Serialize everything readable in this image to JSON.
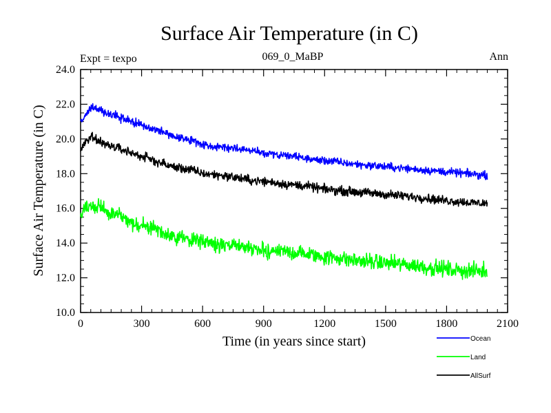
{
  "chart_data": {
    "type": "line",
    "title": "Surface Air Temperature (in C)",
    "subtitle_left": "Expt = texpo",
    "subtitle_center": "069_0_MaBP",
    "subtitle_right": "Ann",
    "xlabel": "Time (in years since start)",
    "ylabel": "Surface Air Temperature (in C)",
    "xlim": [
      0,
      2100
    ],
    "ylim": [
      10,
      24
    ],
    "xticks": [
      0,
      300,
      600,
      900,
      1200,
      1500,
      1800,
      2100
    ],
    "xtick_labels": [
      "0",
      "300",
      "600",
      "900",
      "1200",
      "1500",
      "1800",
      "2100"
    ],
    "yticks": [
      10,
      12,
      14,
      16,
      18,
      20,
      22,
      24
    ],
    "ytick_labels": [
      "10.0",
      "12.0",
      "14.0",
      "16.0",
      "18.0",
      "20.0",
      "22.0",
      "24.0"
    ],
    "x": [
      0,
      25,
      50,
      75,
      100,
      150,
      200,
      250,
      300,
      350,
      400,
      450,
      500,
      550,
      600,
      650,
      700,
      750,
      800,
      850,
      900,
      950,
      1000,
      1050,
      1100,
      1150,
      1200,
      1250,
      1300,
      1350,
      1400,
      1450,
      1500,
      1550,
      1600,
      1650,
      1700,
      1750,
      1800,
      1850,
      1900,
      1950,
      2000
    ],
    "series": [
      {
        "name": "Ocean",
        "color": "#0000ff",
        "values": [
          20.9,
          21.4,
          21.8,
          21.8,
          21.6,
          21.4,
          21.2,
          21.0,
          20.8,
          20.6,
          20.4,
          20.2,
          20.0,
          19.9,
          19.7,
          19.6,
          19.5,
          19.5,
          19.4,
          19.3,
          19.2,
          19.1,
          19.0,
          19.0,
          18.9,
          18.8,
          18.75,
          18.7,
          18.6,
          18.55,
          18.5,
          18.45,
          18.4,
          18.35,
          18.3,
          18.25,
          18.2,
          18.15,
          18.1,
          18.05,
          18.0,
          17.95,
          17.9
        ]
      },
      {
        "name": "Land",
        "color": "#00ff00",
        "values": [
          15.6,
          16.0,
          16.2,
          16.1,
          16.0,
          15.8,
          15.5,
          15.2,
          15.0,
          14.8,
          14.6,
          14.4,
          14.3,
          14.2,
          14.1,
          14.0,
          13.9,
          13.8,
          13.75,
          13.7,
          13.6,
          13.55,
          13.5,
          13.45,
          13.4,
          13.3,
          13.2,
          13.15,
          13.1,
          13.0,
          12.95,
          12.9,
          12.85,
          12.8,
          12.75,
          12.7,
          12.6,
          12.55,
          12.5,
          12.45,
          12.4,
          12.4,
          12.35
        ]
      },
      {
        "name": "AllSurf",
        "color": "#000000",
        "values": [
          19.4,
          19.8,
          20.1,
          20.0,
          19.8,
          19.6,
          19.4,
          19.2,
          19.0,
          18.8,
          18.6,
          18.4,
          18.3,
          18.2,
          18.0,
          17.95,
          17.9,
          17.8,
          17.7,
          17.6,
          17.55,
          17.5,
          17.4,
          17.35,
          17.3,
          17.2,
          17.1,
          17.05,
          17.0,
          16.95,
          16.9,
          16.85,
          16.8,
          16.75,
          16.7,
          16.65,
          16.6,
          16.5,
          16.45,
          16.4,
          16.35,
          16.3,
          16.3
        ]
      }
    ],
    "legend_position": "bottom-right"
  }
}
